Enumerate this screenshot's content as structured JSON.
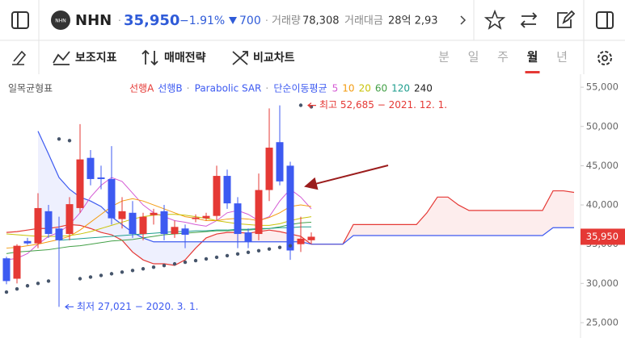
{
  "header": {
    "symbol": "NHN",
    "price": "35,950",
    "change_pct": "−1.91%",
    "change": "700",
    "volume_label": "거래량",
    "volume": "78,308",
    "value_label": "거래대금",
    "value": "28억 2,93"
  },
  "toolbar": {
    "indicators": "보조지표",
    "strategy": "매매전략",
    "compare": "비교차트",
    "periods": [
      "분",
      "일",
      "주",
      "월",
      "년"
    ],
    "selected_period": "월"
  },
  "chart_data": {
    "type": "candlestick",
    "indicator_title": "일목균형표",
    "up_color": "#e53935",
    "down_color": "#3d5af1",
    "ylim": [
      23200,
      56400
    ],
    "yticks": [
      {
        "value": 25000,
        "label": "25,000"
      },
      {
        "value": 30000,
        "label": "30,000"
      },
      {
        "value": 35000,
        "label": "35,000"
      },
      {
        "value": 40000,
        "label": "40,000"
      },
      {
        "value": 45000,
        "label": "45,000"
      },
      {
        "value": 50000,
        "label": "50,000"
      },
      {
        "value": 55000,
        "label": "55,000"
      }
    ],
    "candles": [
      {
        "open": 33200,
        "high": 33400,
        "low": 29900,
        "close": 30300
      },
      {
        "open": 30600,
        "high": 35000,
        "low": 30000,
        "close": 34800
      },
      {
        "open": 35400,
        "high": 35800,
        "low": 34900,
        "close": 35100
      },
      {
        "open": 35100,
        "high": 41500,
        "low": 34500,
        "close": 39600
      },
      {
        "open": 39200,
        "high": 40000,
        "low": 35800,
        "close": 36300
      },
      {
        "open": 37000,
        "high": 38500,
        "low": 27021,
        "close": 35500
      },
      {
        "open": 36300,
        "high": 41000,
        "low": 35500,
        "close": 40100
      },
      {
        "open": 39600,
        "high": 50300,
        "low": 39000,
        "close": 45800
      },
      {
        "open": 46000,
        "high": 47000,
        "low": 42500,
        "close": 43300
      },
      {
        "open": 43500,
        "high": 45000,
        "low": 42000,
        "close": 43300
      },
      {
        "open": 43300,
        "high": 47500,
        "low": 37500,
        "close": 38300
      },
      {
        "open": 38200,
        "high": 41000,
        "low": 37000,
        "close": 39200
      },
      {
        "open": 39000,
        "high": 40500,
        "low": 35800,
        "close": 36300
      },
      {
        "open": 36300,
        "high": 39000,
        "low": 35500,
        "close": 38500
      },
      {
        "open": 38700,
        "high": 39500,
        "low": 37500,
        "close": 39000
      },
      {
        "open": 39200,
        "high": 40000,
        "low": 35500,
        "close": 36300
      },
      {
        "open": 36300,
        "high": 38000,
        "low": 35800,
        "close": 37200
      },
      {
        "open": 37000,
        "high": 37500,
        "low": 34500,
        "close": 36200
      },
      {
        "open": 38200,
        "high": 38800,
        "low": 37800,
        "close": 38400
      },
      {
        "open": 38300,
        "high": 39000,
        "low": 38000,
        "close": 38600
      },
      {
        "open": 38600,
        "high": 45000,
        "low": 38000,
        "close": 43700
      },
      {
        "open": 43700,
        "high": 44500,
        "low": 39500,
        "close": 40200
      },
      {
        "open": 40200,
        "high": 41000,
        "low": 34500,
        "close": 36300
      },
      {
        "open": 36500,
        "high": 37000,
        "low": 34500,
        "close": 35300
      },
      {
        "open": 36300,
        "high": 44000,
        "low": 35500,
        "close": 41900
      },
      {
        "open": 41900,
        "high": 52300,
        "low": 40500,
        "close": 47300
      },
      {
        "open": 48000,
        "high": 52685,
        "low": 42500,
        "close": 43000
      },
      {
        "open": 45000,
        "high": 45500,
        "low": 33000,
        "close": 34200
      },
      {
        "open": 35000,
        "high": 38500,
        "low": 34000,
        "close": 35700
      },
      {
        "open": 35500,
        "high": 36500,
        "low": 35000,
        "close": 35950
      }
    ],
    "ichimoku": [
      {
        "name": "선행A",
        "color": "#e53935",
        "values": [
          36500,
          36600,
          36800,
          37000,
          37000,
          37200,
          37500,
          37400,
          37000,
          36500,
          36200,
          35500,
          34000,
          33000,
          32500,
          32500,
          32300,
          33000,
          34500,
          35800,
          36300,
          36500,
          36500,
          36400,
          36600,
          36800,
          36600,
          36300,
          36000,
          35000,
          35000,
          35000,
          35000,
          37500,
          37500,
          37500,
          37500,
          37500,
          37500,
          37500,
          39000,
          41000,
          41000,
          40000,
          39300,
          39300,
          39300,
          39300,
          39300,
          39300,
          39300,
          39300,
          41800,
          41800,
          41600
        ]
      },
      {
        "name": "선행B",
        "color": "#3d5af1",
        "values": [
          null,
          null,
          null,
          49400,
          46500,
          43500,
          42000,
          41000,
          40500,
          39800,
          38500,
          37500,
          36500,
          35800,
          35300,
          35300,
          35300,
          35300,
          35300,
          35300,
          35300,
          35300,
          35300,
          35300,
          35300,
          35300,
          35300,
          35300,
          35300,
          35000,
          35000,
          35000,
          35000,
          36100,
          36100,
          36100,
          36100,
          36100,
          36100,
          36100,
          36100,
          36100,
          36100,
          36100,
          36100,
          36100,
          36100,
          36100,
          36100,
          36100,
          36100,
          36100,
          37100,
          37100,
          37100
        ]
      }
    ],
    "sar": {
      "name": "Parabolic SAR",
      "color": "#46556b",
      "values": [
        28900,
        29300,
        29700,
        30000,
        30300,
        48400,
        48200,
        30600,
        30810,
        31020,
        31230,
        31440,
        31650,
        31860,
        32070,
        32280,
        32490,
        32700,
        32910,
        33120,
        33330,
        33540,
        33750,
        33960,
        34170,
        34380,
        34590,
        34800,
        52700,
        52500
      ]
    },
    "ma_title": "단순이동평균",
    "moving_averages": [
      {
        "name": "5",
        "color": "#d45ad4",
        "values": [
          33000,
          33200,
          33800,
          35000,
          36000,
          36500,
          37500,
          39000,
          41000,
          42500,
          43500,
          43000,
          41500,
          40000,
          39000,
          38500,
          38000,
          37800,
          37500,
          37300,
          38000,
          39000,
          39300,
          38800,
          38000,
          38500,
          40500,
          42000,
          41000,
          39500
        ]
      },
      {
        "name": "10",
        "color": "#f39c12",
        "values": [
          34500,
          34600,
          34800,
          35000,
          35300,
          35600,
          36000,
          36800,
          37800,
          38800,
          39800,
          40500,
          40800,
          40500,
          40000,
          39500,
          39000,
          38500,
          38300,
          38000,
          38000,
          38200,
          38300,
          38200,
          38000,
          38400,
          39000,
          39800,
          40000,
          39800
        ]
      },
      {
        "name": "20",
        "color": "#c9c30a",
        "values": [
          36300,
          36200,
          36100,
          36000,
          36000,
          36000,
          36100,
          36300,
          36600,
          37000,
          37400,
          37800,
          38200,
          38500,
          38700,
          38800,
          38800,
          38700,
          38500,
          38300,
          38000,
          37800,
          37600,
          37500,
          37400,
          37400,
          37600,
          38000,
          38300,
          38500
        ]
      },
      {
        "name": "60",
        "color": "#43a047",
        "values": [
          33800,
          34000,
          34100,
          34200,
          34300,
          34500,
          34700,
          34800,
          35000,
          35200,
          35400,
          35500,
          35600,
          35800,
          36000,
          36200,
          36300,
          36400,
          36500,
          36600,
          36700,
          36700,
          36800,
          36800,
          36900,
          37000,
          37200,
          37500,
          37700,
          37800
        ]
      },
      {
        "name": "120",
        "color": "#1e9e8e",
        "values": [
          null,
          null,
          null,
          null,
          null,
          35500,
          35600,
          35700,
          35800,
          35900,
          36000,
          36100,
          36200,
          36300,
          36400,
          36500,
          36600,
          36600,
          36700,
          36700,
          36800,
          36800,
          36900,
          36900,
          37000,
          37000,
          37100,
          37100,
          37200,
          37200
        ]
      },
      {
        "name": "240",
        "color": "#222222",
        "values": [
          null,
          null,
          null,
          null,
          null,
          null,
          null,
          null,
          null,
          null,
          null,
          null,
          null,
          null,
          null,
          null,
          null,
          null,
          null,
          null,
          null,
          null,
          null,
          null,
          null,
          null,
          null,
          null,
          null,
          null
        ]
      }
    ],
    "current_price": {
      "value": 35950,
      "label": "35,950"
    },
    "annotations": [
      {
        "label": "최고 52,685 − 2021. 12. 1.",
        "value": 52685,
        "color": "#e53935"
      },
      {
        "label": "최저 27,021 − 2020. 3. 1.",
        "value": 27021,
        "color": "#3d5af1"
      }
    ]
  }
}
